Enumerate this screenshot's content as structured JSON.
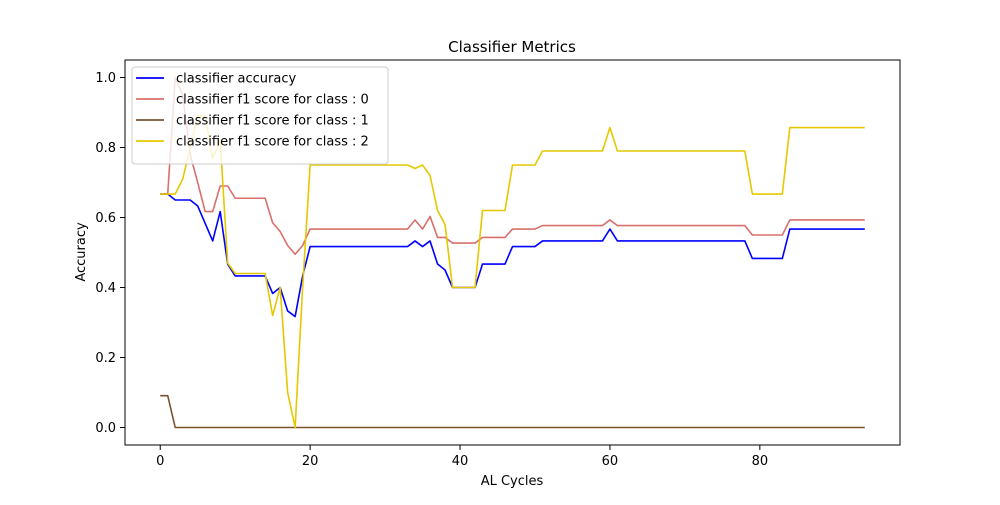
{
  "chart_data": {
    "type": "line",
    "title": "Classifier Metrics",
    "xlabel": "AL Cycles",
    "ylabel": "Accuracy",
    "xlim": [
      -4.7,
      98.7
    ],
    "ylim": [
      -0.05,
      1.05
    ],
    "x_ticks": [
      0,
      20,
      40,
      60,
      80
    ],
    "y_ticks": [
      0.0,
      0.2,
      0.4,
      0.6,
      0.8,
      1.0
    ],
    "x_tick_labels": [
      "0",
      "20",
      "40",
      "60",
      "80"
    ],
    "y_tick_labels": [
      "0.0",
      "0.2",
      "0.4",
      "0.6",
      "0.8",
      "1.0"
    ],
    "legend_position": "top-left",
    "series": [
      {
        "name": "classifier accuracy",
        "color": "#0000ff",
        "points": [
          [
            0,
            0.667
          ],
          [
            1,
            0.667
          ],
          [
            2,
            0.65
          ],
          [
            3,
            0.65
          ],
          [
            4,
            0.65
          ],
          [
            5,
            0.633
          ],
          [
            6,
            0.583
          ],
          [
            7,
            0.533
          ],
          [
            8,
            0.617
          ],
          [
            9,
            0.467
          ],
          [
            10,
            0.433
          ],
          [
            11,
            0.433
          ],
          [
            12,
            0.433
          ],
          [
            13,
            0.433
          ],
          [
            14,
            0.433
          ],
          [
            15,
            0.383
          ],
          [
            16,
            0.4
          ],
          [
            17,
            0.333
          ],
          [
            18,
            0.317
          ],
          [
            19,
            0.433
          ],
          [
            20,
            0.517
          ],
          [
            33,
            0.517
          ],
          [
            34,
            0.533
          ],
          [
            35,
            0.517
          ],
          [
            36,
            0.533
          ],
          [
            37,
            0.467
          ],
          [
            38,
            0.45
          ],
          [
            39,
            0.4
          ],
          [
            42,
            0.4
          ],
          [
            43,
            0.467
          ],
          [
            46,
            0.467
          ],
          [
            47,
            0.517
          ],
          [
            50,
            0.517
          ],
          [
            51,
            0.533
          ],
          [
            59,
            0.533
          ],
          [
            60,
            0.567
          ],
          [
            61,
            0.533
          ],
          [
            78,
            0.533
          ],
          [
            79,
            0.483
          ],
          [
            83,
            0.483
          ],
          [
            84,
            0.567
          ],
          [
            94,
            0.567
          ]
        ]
      },
      {
        "name": "classifier f1 score for class : 0",
        "color": "#d9706c",
        "points": [
          [
            0,
            0.667
          ],
          [
            1,
            0.667
          ],
          [
            2,
            1.0
          ],
          [
            3,
            0.95
          ],
          [
            4,
            0.78
          ],
          [
            5,
            0.7
          ],
          [
            6,
            0.617
          ],
          [
            7,
            0.617
          ],
          [
            8,
            0.69
          ],
          [
            9,
            0.69
          ],
          [
            10,
            0.655
          ],
          [
            14,
            0.655
          ],
          [
            15,
            0.585
          ],
          [
            16,
            0.56
          ],
          [
            17,
            0.52
          ],
          [
            18,
            0.495
          ],
          [
            19,
            0.52
          ],
          [
            20,
            0.567
          ],
          [
            33,
            0.567
          ],
          [
            34,
            0.593
          ],
          [
            35,
            0.567
          ],
          [
            36,
            0.603
          ],
          [
            37,
            0.543
          ],
          [
            38,
            0.543
          ],
          [
            39,
            0.527
          ],
          [
            42,
            0.527
          ],
          [
            43,
            0.543
          ],
          [
            46,
            0.543
          ],
          [
            47,
            0.567
          ],
          [
            50,
            0.567
          ],
          [
            51,
            0.577
          ],
          [
            59,
            0.577
          ],
          [
            60,
            0.593
          ],
          [
            61,
            0.577
          ],
          [
            78,
            0.577
          ],
          [
            79,
            0.55
          ],
          [
            83,
            0.55
          ],
          [
            84,
            0.593
          ],
          [
            94,
            0.593
          ]
        ]
      },
      {
        "name": "classifier f1 score for class : 1",
        "color": "#7b5230",
        "points": [
          [
            0,
            0.091
          ],
          [
            1,
            0.091
          ],
          [
            2,
            0.0
          ],
          [
            94,
            0.0
          ]
        ]
      },
      {
        "name": "classifier f1 score for class : 2",
        "color": "#e5c800",
        "points": [
          [
            0,
            0.667
          ],
          [
            1,
            0.667
          ],
          [
            2,
            0.667
          ],
          [
            3,
            0.71
          ],
          [
            4,
            0.8
          ],
          [
            5,
            0.89
          ],
          [
            6,
            0.89
          ],
          [
            7,
            0.77
          ],
          [
            8,
            0.82
          ],
          [
            9,
            0.47
          ],
          [
            10,
            0.44
          ],
          [
            14,
            0.44
          ],
          [
            15,
            0.32
          ],
          [
            16,
            0.4
          ],
          [
            17,
            0.1
          ],
          [
            18,
            0.0
          ],
          [
            19,
            0.4
          ],
          [
            20,
            0.75
          ],
          [
            33,
            0.75
          ],
          [
            34,
            0.74
          ],
          [
            35,
            0.75
          ],
          [
            36,
            0.72
          ],
          [
            37,
            0.62
          ],
          [
            38,
            0.58
          ],
          [
            39,
            0.4
          ],
          [
            42,
            0.4
          ],
          [
            43,
            0.62
          ],
          [
            46,
            0.62
          ],
          [
            47,
            0.75
          ],
          [
            50,
            0.75
          ],
          [
            51,
            0.79
          ],
          [
            59,
            0.79
          ],
          [
            60,
            0.857
          ],
          [
            61,
            0.79
          ],
          [
            78,
            0.79
          ],
          [
            79,
            0.667
          ],
          [
            83,
            0.667
          ],
          [
            84,
            0.857
          ],
          [
            94,
            0.857
          ]
        ]
      }
    ]
  }
}
